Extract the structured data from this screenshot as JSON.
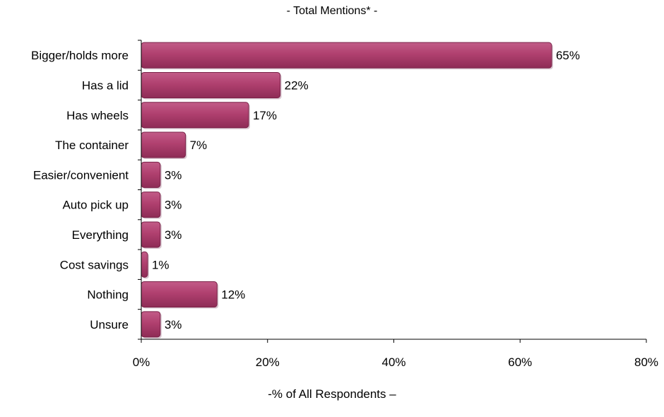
{
  "chart_data": {
    "type": "bar",
    "orientation": "horizontal",
    "title": "- Total Mentions* -",
    "xlabel": "-% of All Respondents –",
    "ylabel": "",
    "categories": [
      "Bigger/holds more",
      "Has a lid",
      "Has wheels",
      "The container",
      "Easier/convenient",
      "Auto pick up",
      "Everything",
      "Cost savings",
      "Nothing",
      "Unsure"
    ],
    "values": [
      65,
      22,
      17,
      7,
      3,
      3,
      3,
      1,
      12,
      3
    ],
    "data_labels": [
      "65%",
      "22%",
      "17%",
      "7%",
      "3%",
      "3%",
      "3%",
      "1%",
      "12%",
      "3%"
    ],
    "xlim": [
      0,
      80
    ],
    "x_ticks": [
      0,
      20,
      40,
      60,
      80
    ],
    "x_tick_labels": [
      "0%",
      "20%",
      "40%",
      "60%",
      "80%"
    ],
    "grid": false,
    "legend": "none",
    "bar_color": "#b0406f"
  }
}
